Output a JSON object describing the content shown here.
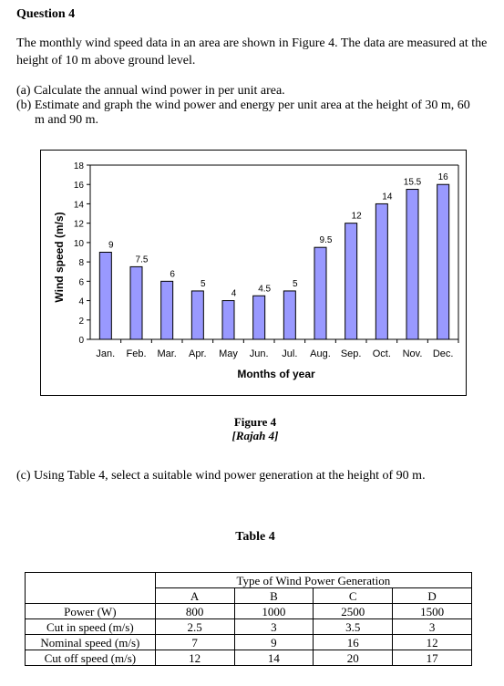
{
  "question": {
    "heading": "Question 4",
    "intro": "The monthly wind speed data in an area are shown in Figure 4. The data are measured at the height of 10 m above ground level.",
    "part_a": "(a) Calculate the annual wind power in per unit area.",
    "part_b_line1": "(b) Estimate and graph the wind power and energy per unit area at the height of 30 m, 60",
    "part_b_line2": "m and 90 m.",
    "part_c": "(c) Using Table 4, select a suitable wind power generation at the height of 90 m."
  },
  "figure": {
    "caption": "Figure 4",
    "subcaption": "[Rajah 4]"
  },
  "chart_data": {
    "type": "bar",
    "categories": [
      "Jan.",
      "Feb.",
      "Mar.",
      "Apr.",
      "May",
      "Jun.",
      "Jul.",
      "Aug.",
      "Sep.",
      "Oct.",
      "Nov.",
      "Dec."
    ],
    "values": [
      9,
      7.5,
      6,
      5,
      4,
      4.5,
      5,
      9.5,
      12,
      14,
      15.5,
      16
    ],
    "data_labels": [
      "9",
      "7.5",
      "6",
      "5",
      "4",
      "4.5",
      "5",
      "9.5",
      "12",
      "14",
      "15.5",
      "16"
    ],
    "xlabel": "Months of year",
    "ylabel": "Wind speed (m/s)",
    "ylim": [
      0,
      18
    ],
    "yticks": [
      "0",
      "2",
      "4",
      "6",
      "8",
      "10",
      "12",
      "14",
      "16",
      "18"
    ],
    "grid": false,
    "bar_color": "#9999ff"
  },
  "table": {
    "title": "Table 4",
    "group_header": "Type of Wind Power Generation",
    "columns": [
      "A",
      "B",
      "C",
      "D"
    ],
    "rows": [
      {
        "label": "Power (W)",
        "values": [
          "800",
          "1000",
          "2500",
          "1500"
        ]
      },
      {
        "label": "Cut in speed (m/s)",
        "values": [
          "2.5",
          "3",
          "3.5",
          "3"
        ]
      },
      {
        "label": "Nominal speed (m/s)",
        "values": [
          "7",
          "9",
          "16",
          "12"
        ]
      },
      {
        "label": "Cut off speed (m/s)",
        "values": [
          "12",
          "14",
          "20",
          "17"
        ]
      }
    ]
  }
}
